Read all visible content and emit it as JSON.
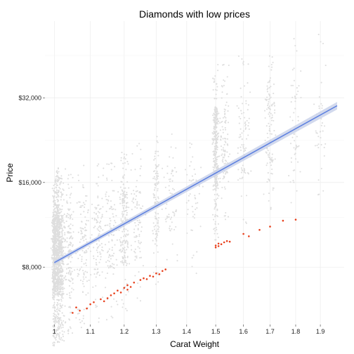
{
  "chart_data": {
    "type": "scatter",
    "title": "Diamonds with low prices",
    "xlabel": "Carat Weight",
    "ylabel": "Price",
    "x_scale": "cube-root",
    "y_scale": "log2",
    "xlim": [
      0.975,
      2.0
    ],
    "ylim": [
      5000,
      60000
    ],
    "x_ticks": [
      1,
      1.1,
      1.2,
      1.3,
      1.4,
      1.5,
      1.6,
      1.7,
      1.8,
      1.9
    ],
    "x_tick_labels": [
      "1",
      "1.1",
      "1.2",
      "1.3",
      "1.4",
      "1.5",
      "1.6",
      "1.7",
      "1.8",
      "1.9"
    ],
    "y_ticks": [
      8000,
      16000,
      32000
    ],
    "y_tick_labels": [
      "$8,000",
      "$16,000",
      "$32,000"
    ],
    "grid": true,
    "colors": {
      "background_points": "#dedede",
      "highlight_points": "#e8401c",
      "trend_line": "#5b7fe0",
      "confidence_band": "#c7cfe8",
      "grid": "#ececec"
    },
    "series": [
      {
        "role": "all diamonds (background)",
        "clusters": [
          {
            "x": 1.0,
            "y_min": 4200,
            "y_max": 16500,
            "n": 500,
            "spread": 0.006
          },
          {
            "x": 1.01,
            "y_min": 4300,
            "y_max": 18000,
            "n": 600,
            "spread": 0.008
          },
          {
            "x": 1.02,
            "y_min": 4300,
            "y_max": 17000,
            "n": 260,
            "spread": 0.008
          },
          {
            "x": 1.04,
            "y_min": 4500,
            "y_max": 18000,
            "n": 150,
            "spread": 0.012
          },
          {
            "x": 1.08,
            "y_min": 4800,
            "y_max": 18500,
            "n": 120,
            "spread": 0.02
          },
          {
            "x": 1.12,
            "y_min": 5000,
            "y_max": 19000,
            "n": 110,
            "spread": 0.02
          },
          {
            "x": 1.16,
            "y_min": 5200,
            "y_max": 20000,
            "n": 100,
            "spread": 0.02
          },
          {
            "x": 1.2,
            "y_min": 5600,
            "y_max": 21000,
            "n": 200,
            "spread": 0.015
          },
          {
            "x": 1.24,
            "y_min": 5900,
            "y_max": 22000,
            "n": 90,
            "spread": 0.02
          },
          {
            "x": 1.3,
            "y_min": 6800,
            "y_max": 24000,
            "n": 120,
            "spread": 0.012
          },
          {
            "x": 1.35,
            "y_min": 7200,
            "y_max": 24500,
            "n": 60,
            "spread": 0.025
          },
          {
            "x": 1.42,
            "y_min": 7600,
            "y_max": 26000,
            "n": 50,
            "spread": 0.03
          },
          {
            "x": 1.5,
            "y_min": 10000,
            "y_max": 42000,
            "n": 340,
            "spread": 0.01
          },
          {
            "x": 1.53,
            "y_min": 10800,
            "y_max": 42000,
            "n": 110,
            "spread": 0.02
          },
          {
            "x": 1.6,
            "y_min": 11000,
            "y_max": 45000,
            "n": 90,
            "spread": 0.025
          },
          {
            "x": 1.7,
            "y_min": 12000,
            "y_max": 48000,
            "n": 120,
            "spread": 0.02
          },
          {
            "x": 1.8,
            "y_min": 12500,
            "y_max": 52000,
            "n": 60,
            "spread": 0.025
          },
          {
            "x": 1.9,
            "y_min": 13500,
            "y_max": 56000,
            "n": 40,
            "spread": 0.025
          }
        ]
      },
      {
        "role": "low-price diamonds (highlighted)",
        "points": [
          [
            1.05,
            5500
          ],
          [
            1.06,
            5750
          ],
          [
            1.07,
            5600
          ],
          [
            1.09,
            5700
          ],
          [
            1.1,
            5900
          ],
          [
            1.11,
            6000
          ],
          [
            1.13,
            6150
          ],
          [
            1.14,
            6050
          ],
          [
            1.15,
            6200
          ],
          [
            1.16,
            6350
          ],
          [
            1.17,
            6450
          ],
          [
            1.18,
            6600
          ],
          [
            1.19,
            6500
          ],
          [
            1.2,
            6750
          ],
          [
            1.21,
            6650
          ],
          [
            1.21,
            6900
          ],
          [
            1.22,
            6800
          ],
          [
            1.23,
            7050
          ],
          [
            1.25,
            7200
          ],
          [
            1.26,
            7300
          ],
          [
            1.27,
            7250
          ],
          [
            1.28,
            7450
          ],
          [
            1.29,
            7400
          ],
          [
            1.3,
            7600
          ],
          [
            1.31,
            7550
          ],
          [
            1.32,
            7750
          ],
          [
            1.33,
            7850
          ],
          [
            1.5,
            9400
          ],
          [
            1.5,
            9550
          ],
          [
            1.51,
            9500
          ],
          [
            1.51,
            9700
          ],
          [
            1.52,
            9650
          ],
          [
            1.53,
            9800
          ],
          [
            1.54,
            9900
          ],
          [
            1.55,
            9850
          ],
          [
            1.6,
            10500
          ],
          [
            1.62,
            10300
          ],
          [
            1.66,
            10850
          ],
          [
            1.7,
            11150
          ],
          [
            1.75,
            11700
          ],
          [
            1.8,
            11800
          ]
        ]
      }
    ],
    "fit_line": {
      "x": [
        1.0,
        1.97
      ],
      "y": [
        8300,
        30000
      ],
      "band_halfwidth_start": 0.012,
      "band_halfwidth_end": 0.022
    }
  }
}
